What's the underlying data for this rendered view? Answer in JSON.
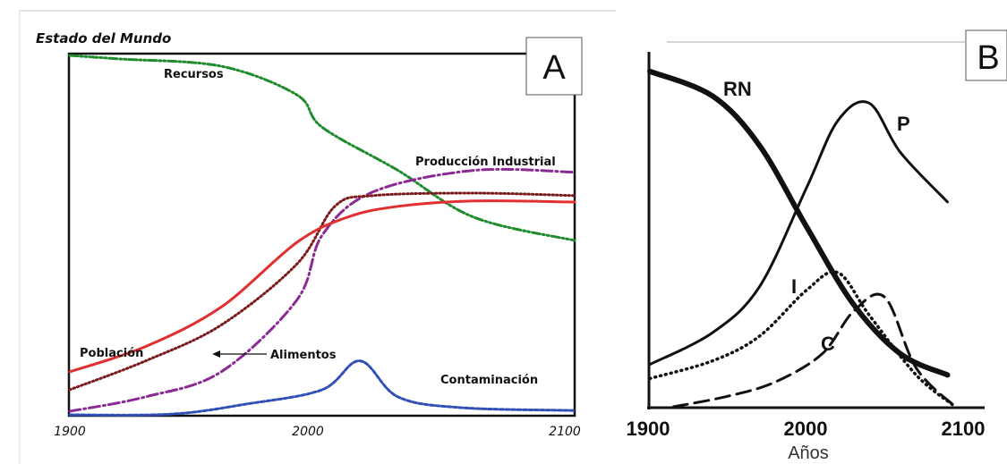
{
  "chart_data": [
    {
      "id": "A",
      "type": "line",
      "title": "Estado del Mundo",
      "panel_label": "A",
      "xlim": [
        1900,
        2100
      ],
      "ylim": [
        0,
        1
      ],
      "x_ticks": [
        "1900",
        "2000",
        "2100"
      ],
      "series": [
        {
          "name": "Recursos",
          "color": "#1e8c2c",
          "style": "dash-dot-dot",
          "x": [
            1900,
            1920,
            1960,
            1990,
            2000,
            2030,
            2060,
            2100
          ],
          "y": [
            1.0,
            0.99,
            0.97,
            0.89,
            0.8,
            0.68,
            0.55,
            0.485
          ]
        },
        {
          "name": "Producción Industrial",
          "color": "#8b2a93",
          "style": "dash-dot",
          "x": [
            1900,
            1930,
            1960,
            1990,
            2000,
            2020,
            2060,
            2100
          ],
          "y": [
            0.01,
            0.05,
            0.12,
            0.32,
            0.5,
            0.62,
            0.68,
            0.675
          ]
        },
        {
          "name": "Alimentos",
          "color": "#7a1a1a",
          "style": "dotted",
          "x": [
            1900,
            1930,
            1960,
            1990,
            2005,
            2020,
            2060,
            2100
          ],
          "y": [
            0.07,
            0.15,
            0.25,
            0.42,
            0.58,
            0.61,
            0.617,
            0.61
          ]
        },
        {
          "name": "Población",
          "color": "#e03030",
          "style": "solid",
          "x": [
            1900,
            1930,
            1960,
            1990,
            2010,
            2030,
            2060,
            2100
          ],
          "y": [
            0.12,
            0.19,
            0.3,
            0.48,
            0.55,
            0.58,
            0.595,
            0.592
          ]
        },
        {
          "name": "Contaminación",
          "color": "#3050b8",
          "style": "dashed",
          "x": [
            1900,
            1940,
            1970,
            2000,
            2015,
            2030,
            2055,
            2100
          ],
          "y": [
            0.0,
            0.002,
            0.03,
            0.07,
            0.15,
            0.05,
            0.02,
            0.012
          ]
        }
      ],
      "annotations": [
        {
          "text": "Recursos",
          "series": "Recursos"
        },
        {
          "text": "Producción Industrial",
          "series": "Producción Industrial"
        },
        {
          "text": "Población",
          "series": "Población"
        },
        {
          "text": "Alimentos",
          "series": "Alimentos"
        },
        {
          "text": "Contaminación",
          "series": "Contaminación"
        }
      ]
    },
    {
      "id": "B",
      "type": "line",
      "panel_label": "B",
      "xlabel": "Años",
      "xlim": [
        1900,
        2100
      ],
      "ylim": [
        0,
        1
      ],
      "x_ticks": [
        "1900",
        "2000",
        "2100"
      ],
      "series": [
        {
          "name": "RN",
          "color": "#111111",
          "style": "thick",
          "x": [
            1900,
            1940,
            1970,
            2000,
            2030,
            2060,
            2090
          ],
          "y": [
            0.95,
            0.88,
            0.74,
            0.51,
            0.29,
            0.15,
            0.09
          ]
        },
        {
          "name": "P",
          "color": "#111111",
          "style": "solid",
          "x": [
            1900,
            1940,
            1970,
            2000,
            2020,
            2040,
            2060,
            2090
          ],
          "y": [
            0.12,
            0.21,
            0.34,
            0.62,
            0.81,
            0.86,
            0.72,
            0.58
          ]
        },
        {
          "name": "I",
          "color": "#111111",
          "style": "dotted",
          "x": [
            1900,
            1940,
            1970,
            2000,
            2020,
            2040,
            2070,
            2095
          ],
          "y": [
            0.08,
            0.13,
            0.2,
            0.33,
            0.38,
            0.26,
            0.09,
            0.0
          ]
        },
        {
          "name": "C",
          "color": "#111111",
          "style": "dashed",
          "x": [
            1915,
            1950,
            1980,
            2010,
            2030,
            2050,
            2070,
            2095
          ],
          "y": [
            0.0,
            0.03,
            0.07,
            0.15,
            0.27,
            0.31,
            0.11,
            0.0
          ]
        }
      ]
    }
  ]
}
